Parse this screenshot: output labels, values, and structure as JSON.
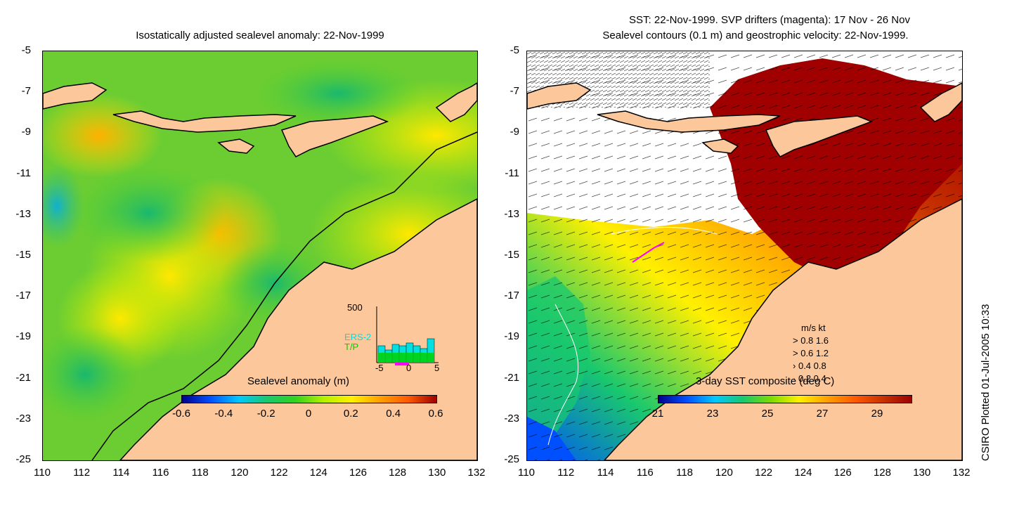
{
  "left_panel": {
    "title": "Isostatically adjusted sealevel anomaly: 22-Nov-1999",
    "colorbar_label": "Sealevel anomaly (m)",
    "colorbar_ticks": [
      "-0.6",
      "-0.4",
      "-0.2",
      "0",
      "0.2",
      "0.4",
      "0.6"
    ],
    "colorbar_colors": [
      "#00008b",
      "#0050ff",
      "#00c8ff",
      "#19c86e",
      "#32d21e",
      "#b4f000",
      "#fff000",
      "#ffa000",
      "#ff5a00",
      "#a00000"
    ],
    "inset": {
      "ymax_label": "500",
      "series_labels": [
        "ERS-2",
        "T/P"
      ],
      "series_colors": [
        "#00e0e0",
        "#00d000"
      ],
      "x_ticks": [
        "-5",
        "0",
        "5"
      ]
    }
  },
  "right_panel": {
    "title_line1": "SST: 22-Nov-1999. SVP drifters (magenta): 17 Nov - 26 Nov",
    "title_line2": "Sealevel contours (0.1 m) and geostrophic velocity: 22-Nov-1999.",
    "colorbar_label": "3-day SST composite (deg C)",
    "colorbar_ticks": [
      "21",
      "23",
      "25",
      "27",
      "29"
    ],
    "colorbar_colors": [
      "#00008b",
      "#0050ff",
      "#00c8ff",
      "#19c86e",
      "#7ddc00",
      "#fff000",
      "#ffa000",
      "#ff5a00",
      "#c83200",
      "#a00000"
    ],
    "velocity_legend": {
      "header": "m/s  kt",
      "rows": [
        "0.8  1.6",
        "0.6  1.2",
        "0.4  0.8",
        "0.2  0.4"
      ]
    }
  },
  "axes": {
    "y_ticks": [
      "-5",
      "-7",
      "-9",
      "-11",
      "-13",
      "-15",
      "-17",
      "-19",
      "-21",
      "-23",
      "-25"
    ],
    "x_ticks": [
      "110",
      "112",
      "114",
      "116",
      "118",
      "120",
      "122",
      "124",
      "126",
      "128",
      "130",
      "132"
    ]
  },
  "colors": {
    "land": "#fcc89b",
    "sea_mid": "#7ed81e",
    "sst_hot": "#a00000",
    "drifter": "#ff00ff"
  },
  "credit": "CSIRO Plotted 01-Jul-2005 10:33"
}
